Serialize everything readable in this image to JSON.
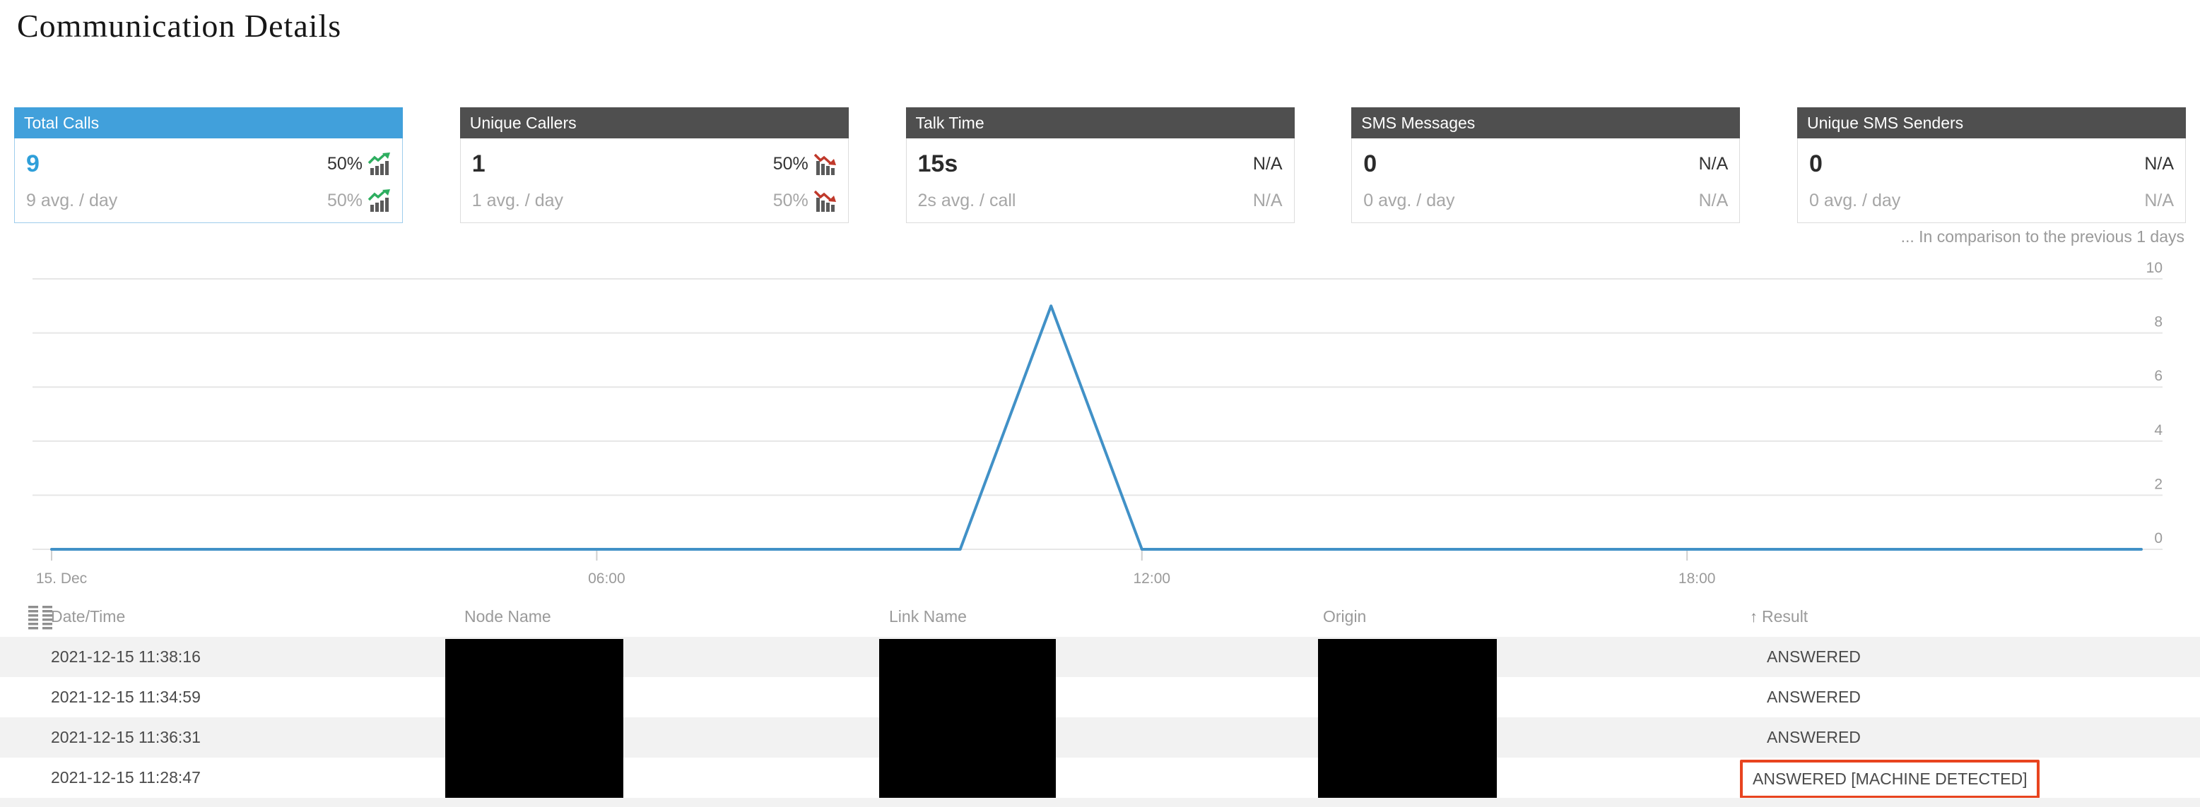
{
  "page": {
    "title": "Communication Details",
    "comparison_note": "... In comparison to the previous 1 days"
  },
  "colors": {
    "accent_blue": "#41a0db",
    "header_gray": "#4f4f4f",
    "value_blue": "#2f9fd9",
    "trend_up_green": "#2eae60",
    "trend_down_red": "#c0392b",
    "trend_bar_gray": "#5a5a5a",
    "line_blue": "#4191c7",
    "grid_gray": "#e6e6e6",
    "highlight_red": "#e8441f"
  },
  "cards": [
    {
      "label": "Total Calls",
      "value": "9",
      "change": "50%",
      "trend": "up",
      "avg": "9 avg. / day",
      "avg_change": "50%",
      "avg_trend": "up",
      "selected": true
    },
    {
      "label": "Unique Callers",
      "value": "1",
      "change": "50%",
      "trend": "down",
      "avg": "1 avg. / day",
      "avg_change": "50%",
      "avg_trend": "down",
      "selected": false
    },
    {
      "label": "Talk Time",
      "value": "15s",
      "change": "N/A",
      "trend": "none",
      "avg": "2s avg. / call",
      "avg_change": "N/A",
      "avg_trend": "none",
      "selected": false
    },
    {
      "label": "SMS Messages",
      "value": "0",
      "change": "N/A",
      "trend": "none",
      "avg": "0 avg. / day",
      "avg_change": "N/A",
      "avg_trend": "none",
      "selected": false
    },
    {
      "label": "Unique SMS Senders",
      "value": "0",
      "change": "N/A",
      "trend": "none",
      "avg": "0 avg. / day",
      "avg_change": "N/A",
      "avg_trend": "none",
      "selected": false
    }
  ],
  "chart_data": {
    "type": "line",
    "x": [
      "00:00",
      "01:00",
      "02:00",
      "03:00",
      "04:00",
      "05:00",
      "06:00",
      "07:00",
      "08:00",
      "09:00",
      "10:00",
      "11:00",
      "12:00",
      "13:00",
      "14:00",
      "15:00",
      "16:00",
      "17:00",
      "18:00",
      "19:00",
      "20:00",
      "21:00",
      "22:00",
      "23:00"
    ],
    "series": [
      {
        "name": "Calls",
        "values": [
          0,
          0,
          0,
          0,
          0,
          0,
          0,
          0,
          0,
          0,
          0,
          9,
          0,
          0,
          0,
          0,
          0,
          0,
          0,
          0,
          0,
          0,
          0,
          0
        ]
      }
    ],
    "xticks": [
      {
        "index": 0,
        "label": "15. Dec"
      },
      {
        "index": 6,
        "label": "06:00"
      },
      {
        "index": 12,
        "label": "12:00"
      },
      {
        "index": 18,
        "label": "18:00"
      }
    ],
    "yticks": [
      0,
      2,
      4,
      6,
      8,
      10
    ],
    "ylim": [
      0,
      10
    ],
    "title": "",
    "xlabel": "",
    "ylabel": "",
    "grid": true,
    "legend_position": "none",
    "y_axis_side": "right"
  },
  "table": {
    "columns": [
      {
        "label": "Date/Time",
        "icon": "columns-icon",
        "sort": "none"
      },
      {
        "label": "Node Name",
        "sort": "none"
      },
      {
        "label": "Link Name",
        "sort": "none"
      },
      {
        "label": "Origin",
        "sort": "none"
      },
      {
        "label": "Result",
        "sort": "asc",
        "sort_glyph": "↑"
      }
    ],
    "rows": [
      {
        "datetime": "2021-12-15 11:38:16",
        "node_redacted": true,
        "link_redacted": true,
        "origin_redacted": true,
        "result": "ANSWERED",
        "highlighted": false
      },
      {
        "datetime": "2021-12-15 11:34:59",
        "node_redacted": true,
        "link_redacted": true,
        "origin_redacted": true,
        "result": "ANSWERED",
        "highlighted": false
      },
      {
        "datetime": "2021-12-15 11:36:31",
        "node_redacted": true,
        "link_redacted": true,
        "origin_redacted": true,
        "result": "ANSWERED",
        "highlighted": false
      },
      {
        "datetime": "2021-12-15 11:28:47",
        "node_redacted": true,
        "link_redacted": true,
        "origin_redacted": true,
        "result": "ANSWERED [MACHINE DETECTED]",
        "highlighted": true
      }
    ]
  }
}
